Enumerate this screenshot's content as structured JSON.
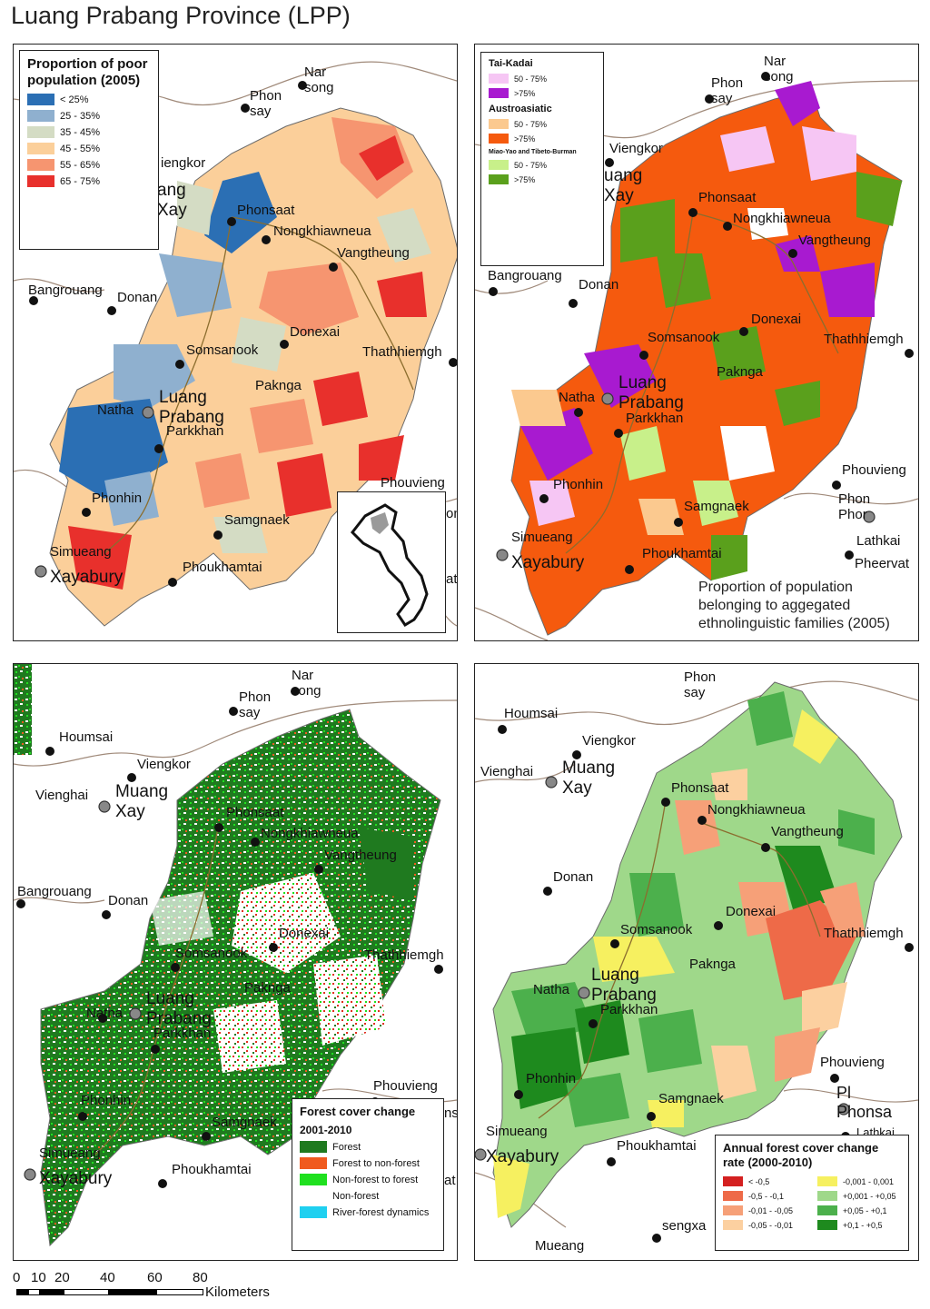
{
  "title": "Luang Prabang Province (LPP)",
  "colors": {
    "border": "#a08a7a",
    "river": "#8b6d2e",
    "boundary": "#9a9a9a",
    "town": "#111111",
    "capital": "#888888"
  },
  "panels": [
    {
      "id": "poverty",
      "legend": {
        "title": "Proportion of poor population (2005)",
        "items": [
          {
            "label": "< 25%",
            "color": "#2b6fb4"
          },
          {
            "label": "25 - 35%",
            "color": "#8fb0cf"
          },
          {
            "label": "35 - 45%",
            "color": "#d4dcc4"
          },
          {
            "label": "45 - 55%",
            "color": "#fbcf9a"
          },
          {
            "label": "55 - 65%",
            "color": "#f69570"
          },
          {
            "label": "65 - 75%",
            "color": "#e8302c"
          }
        ]
      },
      "labels": [
        "Nar song",
        "Phon say",
        "iengkor",
        "ang Xay",
        "Phonsaat",
        "Nongkhiawneua",
        "Vangtheung",
        "Bangrouang",
        "Donan",
        "Donexai",
        "Somsanook",
        "Thathhiemgh",
        "Pakngа",
        "Luang Prabang",
        "Natha",
        "Parkkhan",
        "Phouvieng",
        "Phonhin",
        "Samgnaek",
        "Simueang",
        "Xayabury",
        "Phoukhamtai",
        "on",
        "at"
      ]
    },
    {
      "id": "ethnic",
      "legend": {
        "groups": [
          {
            "name": "Tai-Kadai",
            "items": [
              {
                "label": "50 - 75%",
                "color": "#f6c6f4"
              },
              {
                "label": ">75%",
                "color": "#a81ad0"
              }
            ]
          },
          {
            "name": "Austroasiatic",
            "items": [
              {
                "label": "50 - 75%",
                "color": "#fbc98f"
              },
              {
                "label": ">75%",
                "color": "#f55a0e"
              }
            ]
          },
          {
            "name": "Miao-Yao and Tibeto-Burman",
            "items": [
              {
                "label": "50 - 75%",
                "color": "#c8f08a"
              },
              {
                "label": ">75%",
                "color": "#5aa01c"
              }
            ]
          }
        ]
      },
      "caption": [
        "Proportion of population",
        "belonging to aggegated",
        "ethnolinguistic families (2005)"
      ],
      "labels": [
        "Nar song",
        "Phon say",
        "Viengkor",
        "uang Xay",
        "Phonsaat",
        "Nongkhiawneua",
        "Vangtheung",
        "Bangrouang",
        "Donan",
        "Donexai",
        "Somsanook",
        "Thathhiemgh",
        "Pakngа",
        "Luang Prabang",
        "Natha",
        "Parkkhan",
        "Phonhin",
        "Phouvieng",
        "Phon Phor",
        "Samgnaek",
        "Simueang",
        "Xayabury",
        "Phoukhamtai",
        "Lathkai",
        "Pheervat"
      ]
    },
    {
      "id": "forest-change",
      "legend": {
        "title": "Forest cover change",
        "subtitle": "2001-2010",
        "items": [
          {
            "label": "Forest",
            "color": "#1f7a1f"
          },
          {
            "label": "Forest to non-forest",
            "color": "#f05a1e"
          },
          {
            "label": "Non-forest to forest",
            "color": "#1fe01f"
          },
          {
            "label": "Non-forest",
            "color": "#ffffff"
          },
          {
            "label": "River-forest dynamics",
            "color": "#1fd0f0"
          }
        ]
      },
      "labels": [
        "Nar song",
        "Phon say",
        "Houmsai",
        "Viengkor",
        "Vienghai",
        "Muang Xay",
        "Phonsaat",
        "Nongkhiawneua",
        "Vangtheung",
        "Bangrouang",
        "Donan",
        "Donexai",
        "Somsanook",
        "Thathhiemgh",
        "Pakngа",
        "Luang Prabang",
        "Natha",
        "Parkkhan",
        "Phouvieng",
        "Phonhin",
        "Samgnaek",
        "Simueang",
        "Xayabury",
        "Phoukhamtai",
        "ns",
        "at"
      ]
    },
    {
      "id": "forest-rate",
      "legend": {
        "title": "Annual forest cover change rate (2000-2010)",
        "items": [
          {
            "label": "< -0,5",
            "color": "#d42020"
          },
          {
            "label": "-0,001 - 0,001",
            "color": "#f6f060"
          },
          {
            "label": "-0,5 - -0,1",
            "color": "#ee6a48"
          },
          {
            "label": "+0,001 - +0,05",
            "color": "#9fd88a"
          },
          {
            "label": "-0,01 - -0,05",
            "color": "#f6a078"
          },
          {
            "label": "+0,05 - +0,1",
            "color": "#4cb04c"
          },
          {
            "label": "-0,05 - -0,01",
            "color": "#fcd0a0"
          },
          {
            "label": "+0,1 - +0,5",
            "color": "#1e8a1e"
          }
        ]
      },
      "labels": [
        "Phon say",
        "Houmsai",
        "Viengkor",
        "Vienghai",
        "Muang Xay",
        "Phonsaat",
        "Nongkhiawneua",
        "Vangtheung",
        "Donan",
        "Donexai",
        "Somsanook",
        "Thathhiemgh",
        "Pakngа",
        "Luang Prabang",
        "Natha",
        "Parkkhan",
        "Phonhin",
        "Phouvieng",
        "Pl Phonsa",
        "Samgnaek",
        "Simueang",
        "Xayabury",
        "Phoukhamtai",
        "sengxa",
        "Mueang",
        "Lathkai"
      ]
    }
  ],
  "scale": {
    "ticks": [
      "0",
      "10",
      "20",
      "40",
      "60",
      "80"
    ],
    "unit": "Kilometers"
  }
}
